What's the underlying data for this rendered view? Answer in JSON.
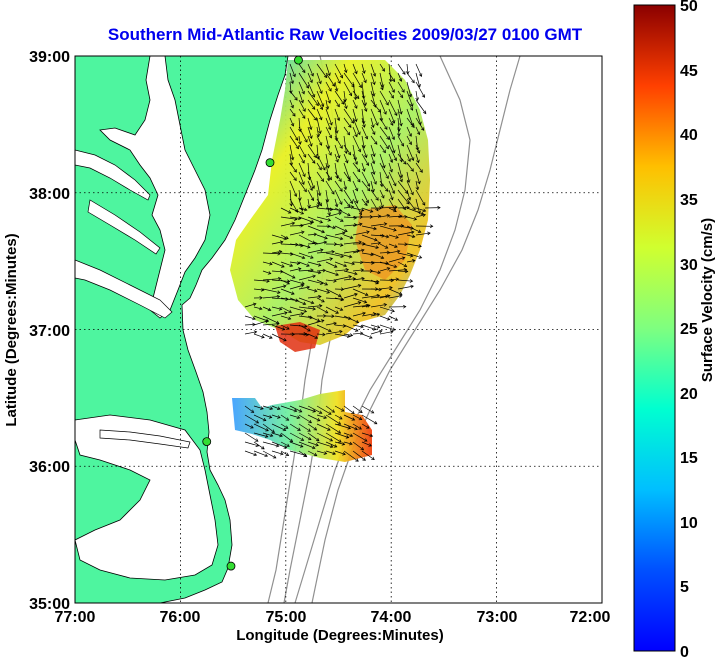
{
  "title": "Southern Mid-Atlantic Raw Velocities 2009/03/27 0100 GMT",
  "map": {
    "xlabel": "Longitude (Degrees:Minutes)",
    "ylabel": "Latitude (Degrees:Minutes)",
    "x_ticks": [
      "77:00",
      "76:00",
      "75:00",
      "74:00",
      "73:00",
      "72:00"
    ],
    "y_ticks": [
      "39:00",
      "38:00",
      "37:00",
      "36:00",
      "35:00"
    ],
    "lon_range": [
      -77,
      -72
    ],
    "lat_range": [
      35,
      39
    ],
    "grid": "dotted",
    "land_color": "#4ef59f",
    "bathymetry_color": "#909090"
  },
  "colorbar": {
    "label": "Surface Velocity (cm/s)",
    "ticks": [
      "50",
      "45",
      "40",
      "35",
      "30",
      "25",
      "20",
      "15",
      "10",
      "5",
      "0"
    ],
    "range": [
      0,
      50
    ],
    "colormap": "jet"
  },
  "stations": [
    {
      "lon": -74.88,
      "lat": 38.97
    },
    {
      "lon": -75.15,
      "lat": 38.22
    },
    {
      "lon": -75.75,
      "lat": 36.18
    },
    {
      "lon": -75.52,
      "lat": 35.27
    }
  ]
}
